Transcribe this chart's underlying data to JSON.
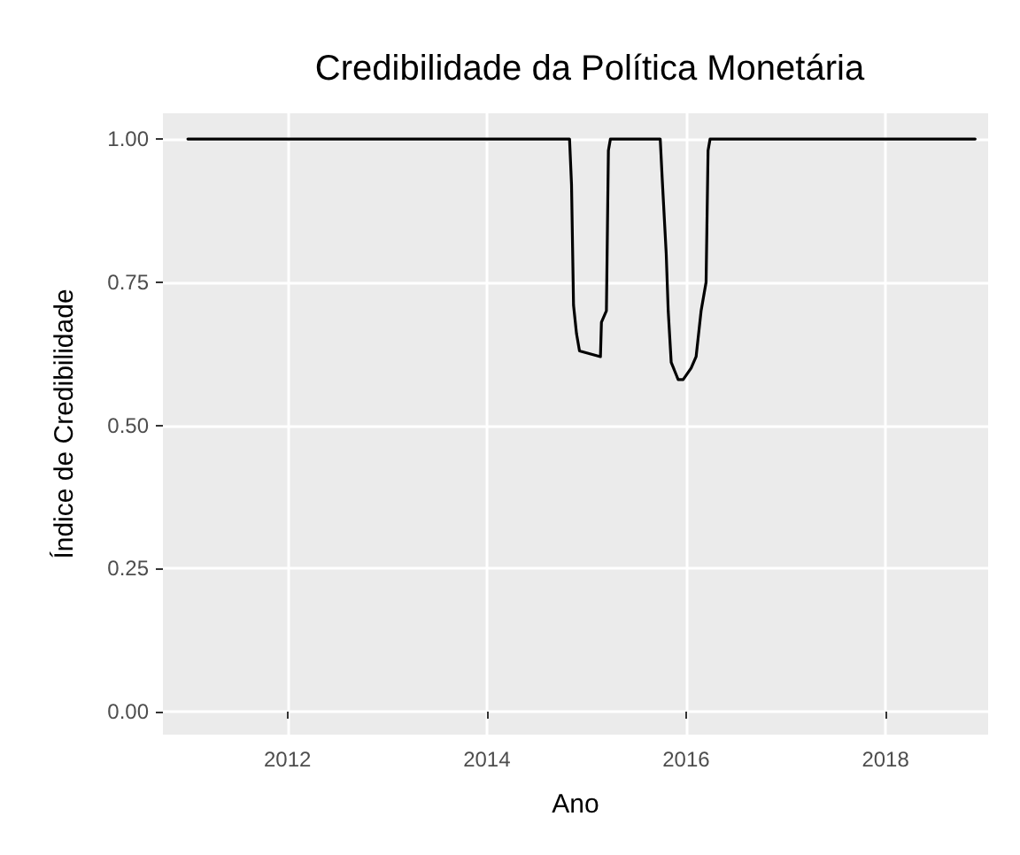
{
  "chart_data": {
    "type": "line",
    "title": "Credibilidade da Política Monetária",
    "xlabel": "Ano",
    "ylabel": "Índice de Credibilidade",
    "x": [
      2011.0,
      2014.83,
      2014.85,
      2014.87,
      2014.9,
      2014.93,
      2015.14,
      2015.15,
      2015.2,
      2015.22,
      2015.24,
      2015.74,
      2015.76,
      2015.8,
      2015.82,
      2015.85,
      2015.92,
      2015.97,
      2016.05,
      2016.1,
      2016.15,
      2016.2,
      2016.22,
      2016.24,
      2018.9
    ],
    "series": [
      {
        "color": "#000000",
        "values": [
          1.0,
          1.0,
          0.92,
          0.71,
          0.66,
          0.63,
          0.62,
          0.68,
          0.7,
          0.98,
          1.0,
          1.0,
          0.93,
          0.8,
          0.7,
          0.61,
          0.58,
          0.58,
          0.6,
          0.62,
          0.7,
          0.75,
          0.98,
          1.0,
          1.0
        ]
      }
    ],
    "xlim": [
      2010.75,
      2019.03
    ],
    "xticks": [
      2012,
      2014,
      2016,
      2018
    ],
    "ylim": [
      -0.04,
      1.045
    ],
    "yticks": [
      {
        "value": 0,
        "label": "0.00"
      },
      {
        "value": 0.25,
        "label": "0.25"
      },
      {
        "value": 0.5,
        "label": "0.50"
      },
      {
        "value": 0.75,
        "label": "0.75"
      },
      {
        "value": 1,
        "label": "1.00"
      }
    ],
    "grid": true,
    "marker": "none",
    "line_style": "solid"
  }
}
